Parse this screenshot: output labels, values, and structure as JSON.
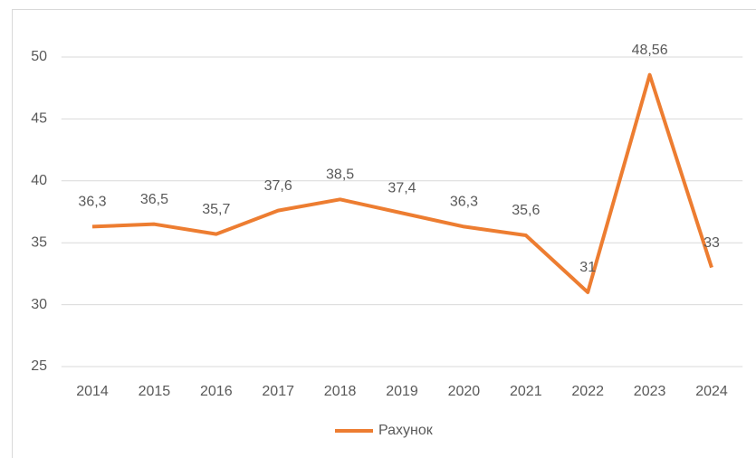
{
  "chart_data": {
    "type": "line",
    "categories": [
      "2014",
      "2015",
      "2016",
      "2017",
      "2018",
      "2019",
      "2020",
      "2021",
      "2022",
      "2023",
      "2024"
    ],
    "series": [
      {
        "name": "Рахунок",
        "color": "#ed7d31",
        "values": [
          36.3,
          36.5,
          35.7,
          37.6,
          38.5,
          37.4,
          36.3,
          35.6,
          31,
          48.56,
          33
        ],
        "value_labels": [
          "36,3",
          "36,5",
          "35,7",
          "37,6",
          "38,5",
          "37,4",
          "36,3",
          "35,6",
          "31",
          "48,56",
          "33"
        ]
      }
    ],
    "ylim": [
      25,
      50
    ],
    "yticks": [
      25,
      30,
      35,
      40,
      45,
      50
    ],
    "grid": true,
    "legend": "bottom"
  }
}
